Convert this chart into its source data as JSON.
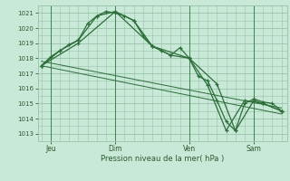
{
  "background_color": "#c8e8d8",
  "grid_color": "#98c4a8",
  "line_color": "#2d6e3a",
  "text_color": "#2d5a30",
  "ylabel_ticks": [
    1013,
    1014,
    1015,
    1016,
    1017,
    1018,
    1019,
    1020,
    1021
  ],
  "ylim": [
    1012.5,
    1021.5
  ],
  "xlabel": "Pression niveau de la mer( hPa )",
  "day_labels": [
    "Jeu",
    "Dim",
    "Ven",
    "Sam"
  ],
  "day_positions": [
    0.5,
    4.0,
    8.0,
    11.5
  ],
  "vline_positions": [
    0.5,
    4.0,
    8.0,
    11.5
  ],
  "series1": {
    "x": [
      0.0,
      0.5,
      1.0,
      1.5,
      2.0,
      2.5,
      3.0,
      3.5,
      4.0,
      4.5,
      5.0,
      5.5,
      6.0,
      6.5,
      7.0,
      7.5,
      8.0,
      8.5,
      9.0,
      9.5,
      10.0,
      10.5,
      11.0,
      11.5,
      12.0,
      12.5,
      13.0
    ],
    "y": [
      1017.5,
      1018.1,
      1018.5,
      1018.9,
      1019.2,
      1020.3,
      1020.8,
      1021.1,
      1021.0,
      1020.8,
      1020.5,
      1019.5,
      1018.8,
      1018.5,
      1018.2,
      1018.7,
      1018.0,
      1016.8,
      1016.5,
      1015.2,
      1013.8,
      1013.2,
      1015.0,
      1015.3,
      1015.1,
      1015.0,
      1014.5
    ]
  },
  "series2": {
    "x": [
      0.0,
      1.0,
      2.0,
      3.0,
      4.0,
      5.0,
      6.0,
      7.0,
      8.0,
      9.0,
      10.0,
      11.0,
      12.0,
      13.0
    ],
    "y": [
      1017.5,
      1018.5,
      1019.2,
      1020.8,
      1021.1,
      1020.5,
      1018.8,
      1018.2,
      1018.0,
      1016.2,
      1013.2,
      1015.2,
      1015.0,
      1014.5
    ]
  },
  "series3": {
    "x": [
      0.0,
      2.0,
      4.0,
      6.0,
      8.0,
      9.5,
      10.5,
      11.5,
      12.0,
      13.0
    ],
    "y": [
      1017.5,
      1019.0,
      1021.1,
      1018.8,
      1018.0,
      1016.3,
      1013.2,
      1015.2,
      1015.0,
      1014.5
    ]
  },
  "trend": {
    "x": [
      0.0,
      13.0
    ],
    "y": [
      1017.8,
      1014.7
    ]
  },
  "trend2": {
    "x": [
      0.0,
      13.0
    ],
    "y": [
      1017.5,
      1014.3
    ]
  }
}
